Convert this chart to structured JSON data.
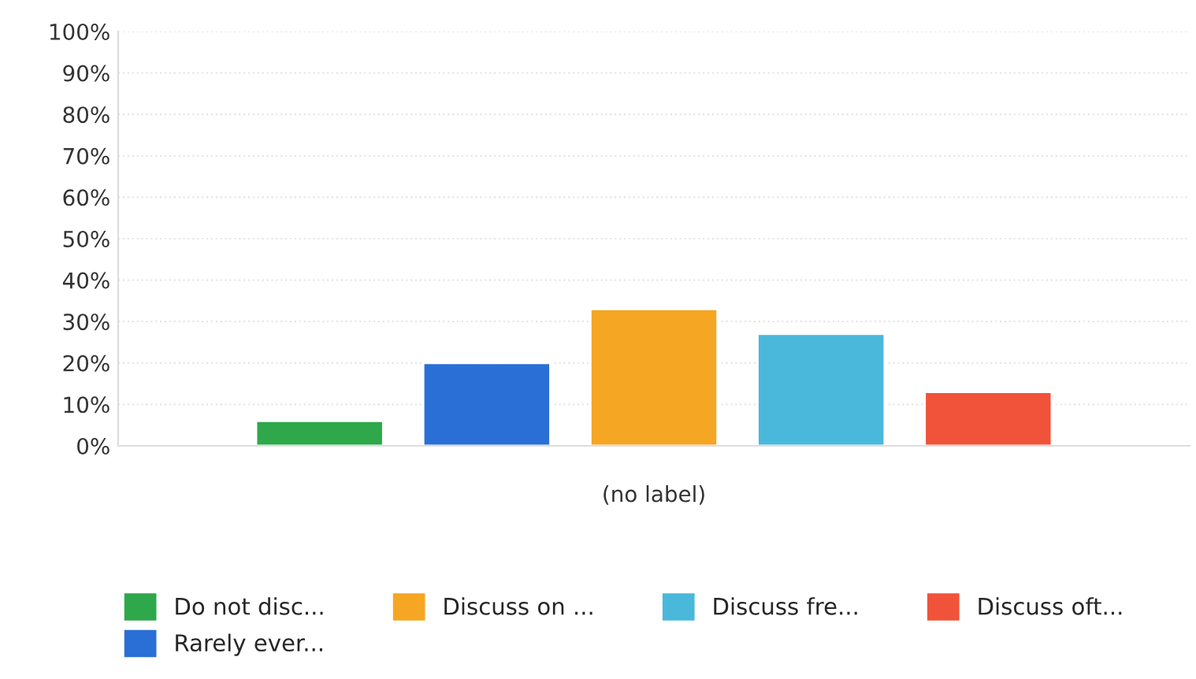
{
  "chart_data": {
    "type": "bar",
    "categories": [
      "(no label)"
    ],
    "series": [
      {
        "name": "Do not disc...",
        "color": "#2ea84a",
        "values": [
          6
        ]
      },
      {
        "name": "Rarely ever...",
        "color": "#2a6fd6",
        "values": [
          20
        ]
      },
      {
        "name": "Discuss on ...",
        "color": "#f5a623",
        "values": [
          33
        ]
      },
      {
        "name": "Discuss fre...",
        "color": "#4ab8db",
        "values": [
          27
        ]
      },
      {
        "name": "Discuss oft...",
        "color": "#f0533a",
        "values": [
          13
        ]
      }
    ],
    "ylim": [
      0,
      100
    ],
    "yticks": [
      {
        "value": 0,
        "label": "0%"
      },
      {
        "value": 10,
        "label": "10%"
      },
      {
        "value": 20,
        "label": "20%"
      },
      {
        "value": 30,
        "label": "30%"
      },
      {
        "value": 40,
        "label": "40%"
      },
      {
        "value": 50,
        "label": "50%"
      },
      {
        "value": 60,
        "label": "60%"
      },
      {
        "value": 70,
        "label": "70%"
      },
      {
        "value": 80,
        "label": "80%"
      },
      {
        "value": 90,
        "label": "90%"
      },
      {
        "value": 100,
        "label": "100%"
      }
    ],
    "grid": "y",
    "legend": "bottom"
  }
}
